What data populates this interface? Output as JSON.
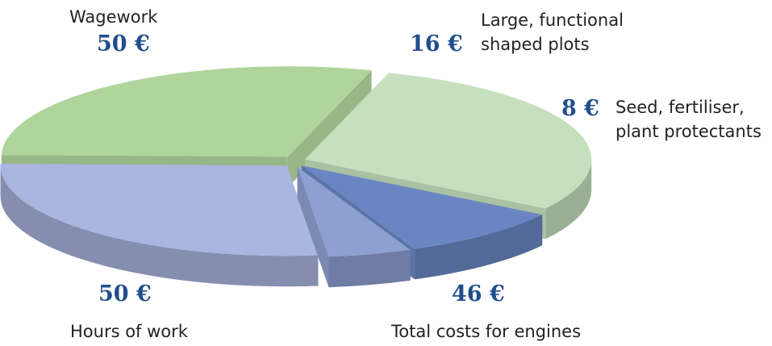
{
  "chart_data": {
    "type": "pie",
    "style": "3d-exploded",
    "unit": "€",
    "slices": [
      {
        "category": "Wagework",
        "value": 50,
        "value_label": "50 €",
        "color": "#c6e0bd"
      },
      {
        "category": "Large, functional\nshaped plots",
        "value": 16,
        "value_label": "16 €",
        "color": "#6a86c2"
      },
      {
        "category": "Seed, fertiliser,\nplant protectants",
        "value": 8,
        "value_label": "8 €",
        "color": "#8ea0d2"
      },
      {
        "category": "Total costs for engines",
        "value": 46,
        "value_label": "46 €",
        "color": "#aab6df"
      },
      {
        "category": "Hours of work",
        "value": 50,
        "value_label": "50 €",
        "color": "#afd59c"
      }
    ]
  }
}
